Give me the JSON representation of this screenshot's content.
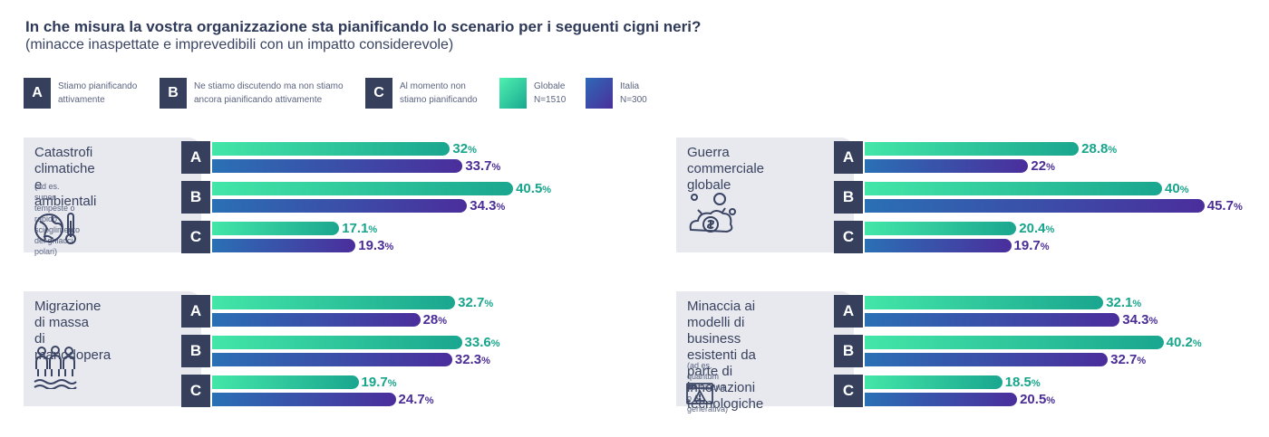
{
  "header": {
    "title": "In che misura la vostra organizzazione sta pianificando lo scenario per i seguenti cigni neri?",
    "subtitle": "(minacce inaspettate e imprevedibili con un impatto considerevole)"
  },
  "legend": {
    "items": [
      {
        "key": "A",
        "line1": "Stiamo pianificando",
        "line2": "attivamente"
      },
      {
        "key": "B",
        "line1": "Ne stiamo discutendo ma non stiamo",
        "line2": "ancora pianificando attivamente"
      },
      {
        "key": "C",
        "line1": "Al momento non",
        "line2": "stiamo pianificando"
      }
    ],
    "series": [
      {
        "line1": "Globale",
        "line2": "N=1510"
      },
      {
        "line1": "Italia",
        "line2": "N=300"
      }
    ]
  },
  "colors": {
    "globale": "#17a58b",
    "italia": "#4a2d96",
    "panel_bg": "#e7e9ef",
    "letter_box": "#36405d"
  },
  "chart_data": [
    {
      "type": "bar",
      "title_lines": [
        "Catastrofi climatiche",
        "e ambientali"
      ],
      "note_lines": [
        "(ad es. super tempeste o rapido",
        "scioglimento dei ghiacci polari)"
      ],
      "icon": "globe-thermometer-icon",
      "categories": [
        "A",
        "B",
        "C"
      ],
      "series": [
        {
          "name": "Globale",
          "values": [
            32,
            40.5,
            17.1
          ],
          "labels": [
            "32",
            "40.5",
            "17.1"
          ]
        },
        {
          "name": "Italia",
          "values": [
            33.7,
            34.3,
            19.3
          ],
          "labels": [
            "33.7",
            "34.3",
            "19.3"
          ]
        }
      ],
      "unit": "%"
    },
    {
      "type": "bar",
      "title_lines": [
        "Guerra commerciale",
        "globale"
      ],
      "note_lines": [],
      "icon": "money-cloud-icon",
      "categories": [
        "A",
        "B",
        "C"
      ],
      "series": [
        {
          "name": "Globale",
          "values": [
            28.8,
            40,
            20.4
          ],
          "labels": [
            "28.8",
            "40",
            "20.4"
          ]
        },
        {
          "name": "Italia",
          "values": [
            22,
            45.7,
            19.7
          ],
          "labels": [
            "22",
            "45.7",
            "19.7"
          ]
        }
      ],
      "unit": "%"
    },
    {
      "type": "bar",
      "title_lines": [
        "Migrazione di massa",
        "di manodopera"
      ],
      "note_lines": [],
      "icon": "people-migration-icon",
      "categories": [
        "A",
        "B",
        "C"
      ],
      "series": [
        {
          "name": "Globale",
          "values": [
            32.7,
            33.6,
            19.7
          ],
          "labels": [
            "32.7",
            "33.6",
            "19.7"
          ]
        },
        {
          "name": "Italia",
          "values": [
            28,
            32.3,
            24.7
          ],
          "labels": [
            "28",
            "32.3",
            "24.7"
          ]
        }
      ],
      "unit": "%"
    },
    {
      "type": "bar",
      "title_lines": [
        "Minaccia ai modelli di",
        "business esistenti da",
        "parte di innovazioni",
        "tecnologiche"
      ],
      "note_lines": [
        "(ad es. quantum computing",
        "o AI generativa)"
      ],
      "icon": "warning-browser-icon",
      "categories": [
        "A",
        "B",
        "C"
      ],
      "series": [
        {
          "name": "Globale",
          "values": [
            32.1,
            40.2,
            18.5
          ],
          "labels": [
            "32.1",
            "40.2",
            "18.5"
          ]
        },
        {
          "name": "Italia",
          "values": [
            34.3,
            32.7,
            20.5
          ],
          "labels": [
            "34.3",
            "32.7",
            "20.5"
          ]
        }
      ],
      "unit": "%"
    }
  ]
}
